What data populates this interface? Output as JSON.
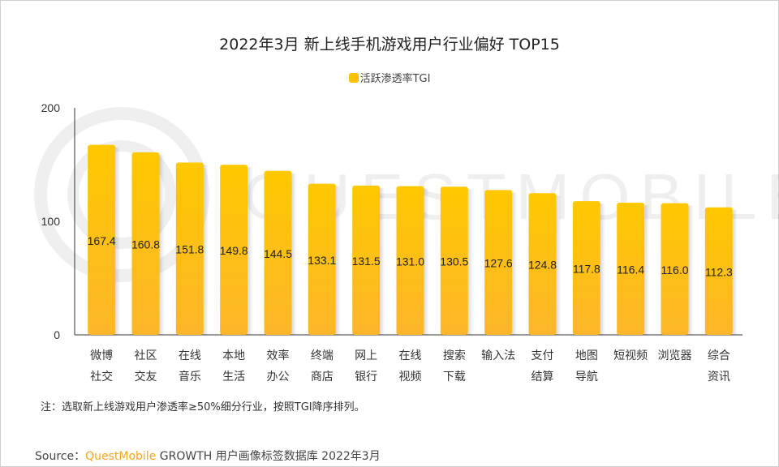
{
  "title": "2022年3月 新上线手机游戏用户行业偏好 TOP15",
  "note": "注：选取新上线游戏用户渗透率≥50%细分行业，按照TGI降序排列。",
  "source": {
    "prefix": "Source：",
    "brand": "QuestMobile",
    "rest": "GROWTH 用户画像标签数据库 2022年3月"
  },
  "watermark": "QUESTMOBILE",
  "colors": {
    "bar_top": "#FFC800",
    "bar_bottom": "#FDB62A",
    "brand": "#F5A623"
  },
  "chart_data": {
    "type": "bar",
    "title": "2022年3月 新上线手机游戏用户行业偏好 TOP15",
    "legend_position": "top",
    "ylim": [
      0,
      200
    ],
    "yticks": [
      "0",
      "100",
      "200"
    ],
    "grid": false,
    "categories": [
      [
        "微博",
        "社交"
      ],
      [
        "社区",
        "交友"
      ],
      [
        "在线",
        "音乐"
      ],
      [
        "本地",
        "生活"
      ],
      [
        "效率",
        "办公"
      ],
      [
        "终端",
        "商店"
      ],
      [
        "网上",
        "银行"
      ],
      [
        "在线",
        "视频"
      ],
      [
        "搜索",
        "下载"
      ],
      [
        "输入法",
        ""
      ],
      [
        "支付",
        "结算"
      ],
      [
        "地图",
        "导航"
      ],
      [
        "短视频",
        ""
      ],
      [
        "浏览器",
        ""
      ],
      [
        "综合",
        "资讯"
      ]
    ],
    "series": [
      {
        "name": "活跃渗透率TGI",
        "values": [
          167.4,
          160.8,
          151.8,
          149.8,
          144.5,
          133.1,
          131.5,
          131.0,
          130.5,
          127.6,
          124.8,
          117.8,
          116.4,
          116.0,
          112.3
        ],
        "labels": [
          "167.4",
          "160.8",
          "151.8",
          "149.8",
          "144.5",
          "133.1",
          "131.5",
          "131.0",
          "130.5",
          "127.6",
          "124.8",
          "117.8",
          "116.4",
          "116.0",
          "112.3"
        ]
      }
    ]
  }
}
